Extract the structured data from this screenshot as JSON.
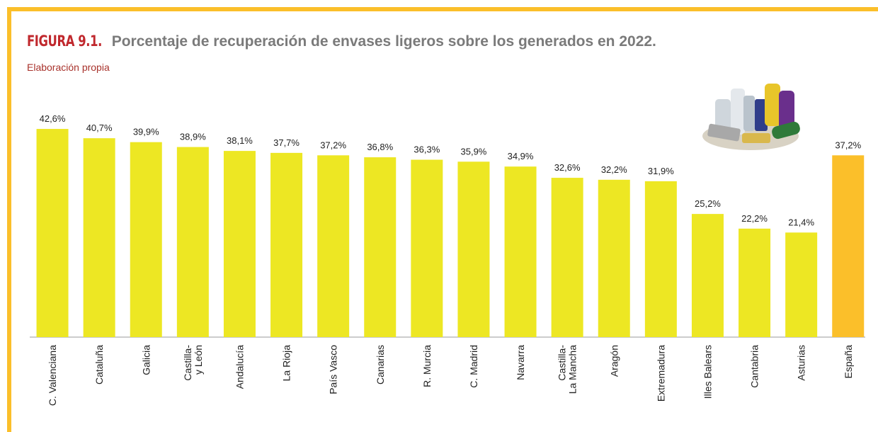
{
  "chart_data": {
    "type": "bar",
    "title_label": "FIGURA 9.1.",
    "title": "Porcentaje de recuperación de envases ligeros sobre los generados en 2022.",
    "subtitle": "Elaboración propia",
    "categories": [
      "C. Valenciana",
      "Cataluña",
      "Galicia",
      "Castilla-\ny León",
      "Andalucía",
      "La Rioja",
      "País Vasco",
      "Canarias",
      "R. Murcia",
      "C. Madrid",
      "Navarra",
      "Castilla-\nLa Mancha",
      "Aragón",
      "Extremadura",
      "Illes Balears",
      "Cantabria",
      "Asturias",
      "España"
    ],
    "values": [
      42.6,
      40.7,
      39.9,
      38.9,
      38.1,
      37.7,
      37.2,
      36.8,
      36.3,
      35.9,
      34.9,
      32.6,
      32.2,
      31.9,
      25.2,
      22.2,
      21.4,
      37.2
    ],
    "value_labels": [
      "42,6%",
      "40,7%",
      "39,9%",
      "38,9%",
      "38,1%",
      "37,7%",
      "37,2%",
      "36,8%",
      "36,3%",
      "35,9%",
      "34,9%",
      "32,6%",
      "32,2%",
      "31,9%",
      "25,2%",
      "22,2%",
      "21,4%",
      "37,2%"
    ],
    "colors": [
      "#ede723",
      "#ede723",
      "#ede723",
      "#ede723",
      "#ede723",
      "#ede723",
      "#ede723",
      "#ede723",
      "#ede723",
      "#ede723",
      "#ede723",
      "#ede723",
      "#ede723",
      "#ede723",
      "#ede723",
      "#ede723",
      "#ede723",
      "#fbbf2a"
    ]
  }
}
